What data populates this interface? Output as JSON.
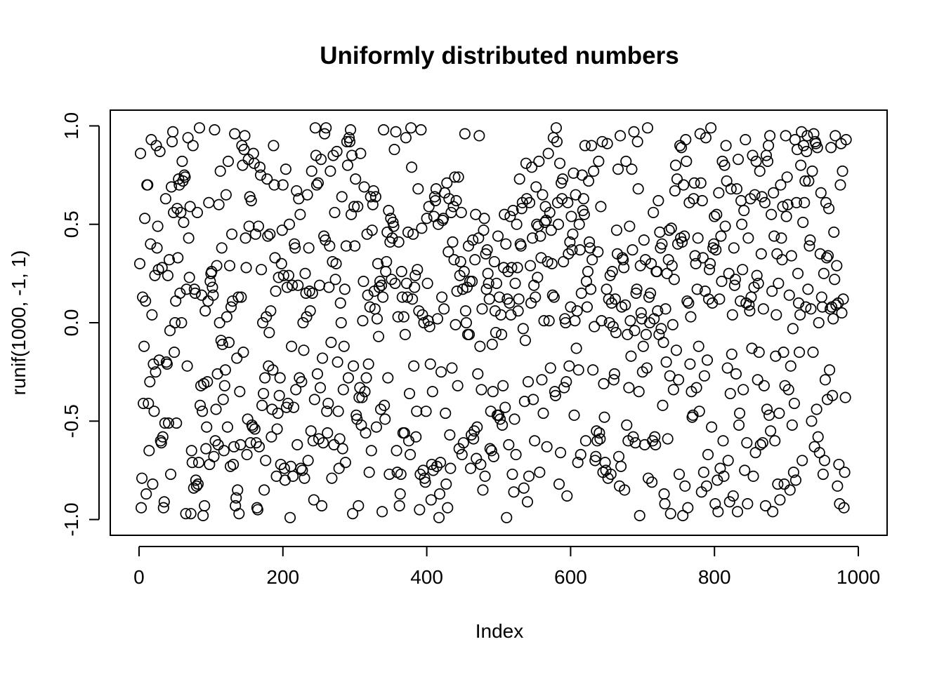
{
  "chart_data": {
    "type": "scatter",
    "title": "Uniformly distributed numbers",
    "xlabel": "Index",
    "ylabel": "runif(1000, -1, 1)",
    "xlim": [
      -40,
      1040
    ],
    "ylim": [
      -1.08,
      1.08
    ],
    "x_ticks": [
      0,
      200,
      400,
      600,
      800,
      1000
    ],
    "x_tick_labels": [
      "0",
      "200",
      "400",
      "600",
      "800",
      "1000"
    ],
    "y_ticks": [
      -1.0,
      -0.5,
      0.0,
      0.5,
      1.0
    ],
    "y_tick_labels": [
      "-1.0",
      "-0.5",
      "0.0",
      "0.5",
      "1.0"
    ],
    "grid": false,
    "legend": "none",
    "point_style": "open-circle",
    "n_points": 1000,
    "x_start": 1,
    "x_step": 1,
    "y": [
      0.3,
      0.86,
      -0.94,
      -0.79,
      0.13,
      -0.41,
      -0.12,
      0.53,
      0.11,
      -0.87,
      0.7,
      0.7,
      -0.41,
      -0.65,
      -0.3,
      0.4,
      0.93,
      0.04,
      -0.82,
      -0.21,
      -0.45,
      0.24,
      -0.25,
      0.9,
      0.38,
      0.49,
      0.27,
      -0.19,
      0.87,
      -0.6,
      -0.61,
      0.28,
      -0.58,
      -0.94,
      -0.91,
      -0.51,
      0.63,
      -0.2,
      -0.21,
      0.24,
      -0.51,
      0.32,
      -0.04,
      -0.77,
      0.69,
      0.92,
      0.97,
      0.56,
      -0.15,
      0.0,
      0.11,
      -0.51,
      0.58,
      0.33,
      0.73,
      0.7,
      0.15,
      0.56,
      0.0,
      0.82,
      0.72,
      0.51,
      0.75,
      0.74,
      -0.97,
      0.17,
      -0.22,
      0.94,
      0.43,
      0.23,
      0.59,
      -0.97,
      -0.65,
      -0.71,
      0.9,
      -0.84,
      0.17,
      0.15,
      -0.8,
      -0.83,
      0.56,
      -0.82,
      -0.71,
      0.99,
      -0.42,
      -0.32,
      0.14,
      -0.45,
      -0.98,
      -0.31,
      -0.93,
      0.06,
      -0.64,
      -0.53,
      -0.3,
      0.11,
      0.61,
      -0.72,
      0.21,
      0.25,
      0.26,
      0.18,
      0.14,
      -0.68,
      0.98,
      -0.6,
      -0.44,
      0.29,
      -0.26,
      -0.62,
      0.6,
      0.0,
      0.77,
      -0.09,
      0.38,
      -0.11,
      -0.39,
      -0.65,
      -0.32,
      -0.24,
      0.65,
      0.03,
      -0.53,
      0.82,
      -0.1,
      0.29,
      -0.73,
      0.08,
      0.45,
      0.11,
      -0.72,
      -0.63,
      0.96,
      -0.93,
      -0.89,
      -0.18,
      -0.85,
      0.13,
      -0.97,
      -0.35,
      -0.62,
      0.13,
      0.9,
      0.8,
      -0.15,
      0.88,
      0.95,
      0.43,
      0.28,
      -0.67,
      -0.49,
      0.83,
      0.49,
      0.64,
      -0.61,
      0.62,
      -0.52,
      -0.53,
      0.86,
      0.81,
      -0.54,
      0.45,
      -0.61,
      -0.94,
      -0.95,
      0.49,
      -0.63,
      0.79,
      0.75,
      0.27,
      -0.42,
      0.0,
      -0.36,
      -0.85,
      -0.28,
      -0.7,
      0.03,
      0.73,
      0.44,
      -0.22,
      -0.05,
      0.45,
      0.06,
      -0.58,
      -0.44,
      -0.24,
      0.9,
      0.7,
      0.33,
      0.16,
      -0.78,
      -0.54,
      -0.46,
      0.23,
      -0.37,
      -0.28,
      -0.72,
      0.3,
      0.47,
      0.7,
      0.24,
      -0.74,
      -0.8,
      0.78,
      -0.43,
      0.18,
      -0.41,
      0.24,
      0.5,
      -0.99,
      -0.73,
      -0.12,
      0.19,
      -0.78,
      -0.43,
      0.4,
      0.38,
      -0.34,
      0.67,
      -0.62,
      0.19,
      0.63,
      -0.28,
      0.55,
      -0.74,
      -0.3,
      -0.75,
      0.0,
      -0.14,
      -0.79,
      0.25,
      0.15,
      0.03,
      0.65,
      -0.7,
      0.38,
      0.16,
      0.06,
      -0.55,
      0.77,
      0.15,
      -0.6,
      -0.9,
      -0.39,
      0.99,
      0.85,
      0.7,
      -0.26,
      0.71,
      -0.59,
      0.19,
      -0.33,
      0.83,
      -0.93,
      -0.18,
      -0.61,
      0.44,
      0.96,
      0.42,
      0.99,
      -0.45,
      -0.56,
      -0.41,
      0.18,
      0.39,
      0.77,
      -0.1,
      -0.79,
      0.31,
      0.85,
      -0.62,
      0.56,
      0.22,
      0.3,
      0.87,
      -0.2,
      -0.45,
      -0.74,
      -0.59,
      0.1,
      0.0,
      0.64,
      -0.64,
      -0.34,
      -0.12,
      0.17,
      -0.71,
      0.39,
      0.92,
      0.8,
      -0.28,
      0.94,
      0.92,
      0.98,
      0.55,
      0.85,
      -0.97,
      -0.22,
      0.59,
      0.39,
      0.73,
      -0.47,
      -0.49,
      0.59,
      -0.93,
      -0.38,
      -0.33,
      0.86,
      -0.52,
      -0.38,
      0.01,
      0.21,
      0.69,
      -0.35,
      -0.56,
      -0.28,
      0.45,
      0.14,
      -0.21,
      -0.76,
      0.08,
      0.64,
      -0.65,
      0.47,
      0.6,
      0.67,
      0.16,
      0.07,
      0.64,
      -0.53,
      0.02,
      0.3,
      -0.07,
      0.18,
      0.21,
      -0.44,
      0.19,
      -0.96,
      0.13,
      0.98,
      -0.42,
      -0.49,
      0.26,
      0.31,
      0.46,
      -0.28,
      0.57,
      -0.77,
      0.41,
      0.53,
      0.22,
      0.43,
      0.51,
      0.49,
      0.88,
      0.2,
      0.97,
      -0.65,
      -0.76,
      0.03,
      0.41,
      -0.93,
      -0.87,
      -0.77,
      0.26,
      0.13,
      -0.56,
      0.03,
      -0.56,
      -0.06,
      0.94,
      0.2,
      0.13,
      0.46,
      -0.6,
      -0.36,
      -0.67,
      0.99,
      0.79,
      0.12,
      0.45,
      -0.22,
      0.18,
      0.24,
      -0.58,
      -0.45,
      0.27,
      0.68,
      0.06,
      -0.95,
      -0.77,
      0.98,
      0.48,
      0.04,
      -0.75,
      0.0,
      -0.79,
      -0.81,
      -0.45,
      0.53,
      0.2,
      0.01,
      0.59,
      -0.02,
      -0.21,
      -0.9,
      -0.72,
      -0.35,
      -0.75,
      0.54,
      0.64,
      0.62,
      0.68,
      -0.73,
      0.02,
      0.5,
      -0.99,
      -0.87,
      -0.71,
      -0.25,
      0.13,
      0.52,
      0.53,
      0.07,
      0.66,
      -0.46,
      -0.82,
      0.71,
      -0.94,
      0.36,
      0.63,
      -0.57,
      -0.74,
      0.56,
      -0.23,
      0.41,
      0.59,
      0.32,
      0.74,
      -0.01,
      0.62,
      0.16,
      -0.32,
      0.74,
      -0.64,
      0.24,
      0.31,
      0.56,
      -0.67,
      0.17,
      -0.61,
      0.26,
      0.96,
      0.06,
      0.0,
      0.18,
      -0.06,
      0.39,
      -0.06,
      0.21,
      -0.74,
      -0.57,
      0.21,
      0.42,
      -0.59,
      -0.55,
      0.32,
      0.55,
      -0.69,
      -0.53,
      -0.26,
      0.43,
      0.95,
      -0.12,
      -0.72,
      -0.34,
      0.07,
      -0.85,
      0.47,
      0.53,
      -0.78,
      0.35,
      0.17,
      0.37,
      0.25,
      0.2,
      0.12,
      -0.64,
      -0.45,
      -0.65,
      -0.11,
      -0.35,
      -0.68,
      0.31,
      0.06,
      -0.05,
      0.2,
      -0.47,
      0.44,
      -0.47,
      0.13,
      -0.49,
      0.04,
      -0.06,
      -0.52,
      -0.32,
      0.28,
      0.55,
      -0.43,
      0.4,
      -0.99,
      0.12,
      0.26,
      -0.62,
      0.1,
      0.54,
      0.04,
      0.28,
      -0.77,
      0.57,
      -0.86,
      -0.49,
      0.2,
      -0.67,
      0.5,
      0.28,
      0.06,
      0.12,
      0.73,
      0.4,
      0.39,
      0.58,
      0.61,
      -0.03,
      -0.84,
      -0.4,
      -0.09,
      0.81,
      0.63,
      -0.91,
      -0.3,
      -0.78,
      0.61,
      0.29,
      0.1,
      0.79,
      0.43,
      -0.39,
      0.19,
      -0.6,
      0.13,
      0.69,
      0.5,
      0.23,
      0.49,
      0.82,
      -0.76,
      0.44,
      0.33,
      -0.29,
      0.65,
      -0.46,
      0.01,
      0.51,
      0.59,
      0.52,
      -0.63,
      0.31,
      0.86,
      0.01,
      0.56,
      -0.23,
      0.47,
      0.3,
      0.14,
      0.94,
      0.13,
      -0.35,
      -0.37,
      0.99,
      0.92,
      0.61,
      0.5,
      -0.82,
      0.81,
      -0.66,
      0.71,
      0.63,
      0.73,
      0.31,
      -0.33,
      0.02,
      0.0,
      -0.3,
      -0.88,
      0.61,
      0.35,
      -0.22,
      0.41,
      0.08,
      0.54,
      0.37,
      0.45,
      0.76,
      -0.47,
      0.01,
      0.65,
      -0.13,
      0.06,
      -0.71,
      -0.24,
      0.5,
      0.37,
      -0.67,
      0.15,
      0.75,
      0.57,
      0.63,
      0.55,
      0.9,
      -0.6,
      0.21,
      0.08,
      0.26,
      0.72,
      0.41,
      0.38,
      0.17,
      0.9,
      0.32,
      -0.24,
      0.77,
      -0.02,
      -0.7,
      -0.68,
      -0.55,
      -0.6,
      0.36,
      0.82,
      -0.56,
      -0.59,
      0.59,
      0.01,
      0.92,
      -0.76,
      -0.31,
      -0.48,
      -0.71,
      -0.75,
      0.17,
      0.91,
      -0.79,
      0.12,
      0.0,
      0.24,
      -0.77,
      0.1,
      0.26,
      -0.02,
      -0.29,
      -0.26,
      0.12,
      -0.05,
      0.47,
      0.35,
      0.78,
      -0.68,
      -0.83,
      0.95,
      -0.73,
      0.08,
      0.33,
      0.32,
      0.28,
      -0.85,
      0.09,
      0.82,
      -0.52,
      -0.06,
      -0.6,
      -0.33,
      0.49,
      0.01,
      -0.17,
      0.78,
      0.37,
      -0.58,
      0.97,
      -0.04,
      -0.61,
      0.15,
      0.17,
      0.92,
      0.68,
      -0.35,
      -0.98,
      0.29,
      0.05,
      0.02,
      -0.25,
      -0.12,
      0.42,
      -0.62,
      0.32,
      -0.06,
      -0.23,
      0.99,
      -0.79,
      0.13,
      0.0,
      0.15,
      0.3,
      -0.81,
      -0.6,
      0.56,
      0.02,
      -0.58,
      -0.62,
      0.26,
      0.26,
      0.06,
      0.62,
      -0.06,
      0.46,
      0.38,
      -0.03,
      0.4,
      -0.42,
      -0.1,
      -0.87,
      -0.92,
      0.07,
      -0.2,
      0.25,
      -0.59,
      0.32,
      0.47,
      -0.27,
      -0.97,
      0.48,
      0.29,
      -0.01,
      -0.34,
      0.22,
      0.67,
      0.8,
      -0.14,
      0.73,
      0.4,
      -0.29,
      -0.77,
      0.9,
      0.43,
      0.89,
      0.41,
      -0.98,
      0.7,
      0.44,
      -0.83,
      0.93,
      0.82,
      0.11,
      -0.94,
      0.1,
      0.61,
      -0.21,
      0.03,
      -0.35,
      -0.48,
      -0.47,
      0.63,
      0.71,
      0.34,
      0.3,
      -0.33,
      0.17,
      0.43,
      -0.12,
      -0.45,
      0.96,
      0.71,
      -0.86,
      0.62,
      0.33,
      -0.76,
      -0.27,
      0.16,
      0.94,
      -0.83,
      -0.19,
      -0.67,
      0.12,
      0.27,
      0.3,
      0.99,
      -0.53,
      0.1,
      0.38,
      0.4,
      0.54,
      -0.92,
      0.37,
      0.55,
      -0.8,
      -0.96,
      0.66,
      0.12,
      -0.74,
      0.44,
      0.21,
      0.82,
      -0.6,
      -0.78,
      0.8,
      0.49,
      0.9,
      0.72,
      -0.23,
      -0.7,
      0.25,
      -0.91,
      -0.36,
      0.68,
      -0.16,
      0.04,
      -0.88,
      0.38,
      0.19,
      0.22,
      -0.26,
      0.68,
      -0.96,
      0.83,
      -0.52,
      -0.46,
      0.11,
      0.62,
      0.5,
      0.27,
      -0.34,
      0.57,
      -0.75,
      0.93,
      0.1,
      -0.61,
      -0.92,
      0.43,
      0.09,
      0.06,
      0.63,
      0.13,
      -0.13,
      0.85,
      -0.78,
      0.18,
      0.65,
      -0.66,
      0.82,
      0.24,
      -0.29,
      0.2,
      -0.15,
      0.77,
      -0.62,
      0.35,
      0.64,
      -0.61,
      0.07,
      -0.32,
      0.61,
      -0.93,
      0.85,
      -0.44,
      0.82,
      0.9,
      -0.47,
      0.95,
      -0.55,
      0.55,
      0.16,
      -0.96,
      0.66,
      0.44,
      -0.6,
      -0.17,
      0.04,
      0.35,
      -0.82,
      0.2,
      -0.46,
      -0.9,
      0.7,
      0.43,
      0.32,
      0.59,
      -0.15,
      -0.82,
      -0.32,
      0.95,
      0.54,
      0.74,
      0.6,
      -0.34,
      0.14,
      -0.85,
      -0.22,
      0.34,
      -0.52,
      -0.03,
      -0.76,
      -0.41,
      0.93,
      -0.8,
      0.61,
      0.88,
      0.25,
      0.1,
      -0.15,
      0.04,
      0.8,
      0.97,
      -0.7,
      0.51,
      0.9,
      0.61,
      0.72,
      0.08,
      0.87,
      0.95,
      0.17,
      0.72,
      0.39,
      0.42,
      0.07,
      -0.5,
      0.77,
      -0.15,
      0.96,
      -0.63,
      0.92,
      0.91,
      -0.44,
      0.89,
      -0.58,
      0.0,
      -0.66,
      0.35,
      0.66,
      0.13,
      0.08,
      -0.77,
      0.25,
      -0.7,
      -0.29,
      0.61,
      0.33,
      -0.39,
      0.34,
      0.58,
      -0.24,
      0.07,
      0.89,
      0.08,
      -0.37,
      0.02,
      0.46,
      0.22,
      0.95,
      0.09,
      0.29,
      -0.83,
      0.1,
      -0.72,
      -0.92,
      0.7,
      0.91,
      0.05,
      0.77,
      0.12,
      -0.94,
      -0.76,
      -0.38,
      0.93
    ]
  }
}
